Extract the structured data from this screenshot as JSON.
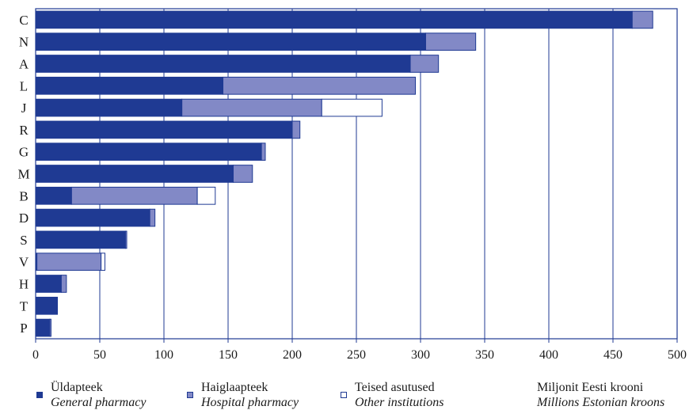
{
  "chart_data": {
    "type": "bar",
    "orientation": "horizontal",
    "stacked": true,
    "categories": [
      "C",
      "N",
      "A",
      "L",
      "J",
      "R",
      "G",
      "M",
      "B",
      "D",
      "S",
      "V",
      "H",
      "T",
      "P"
    ],
    "series": [
      {
        "name": "Üldapteek",
        "name_en": "General pharmacy",
        "color": "#1f3a93",
        "values": [
          465,
          304,
          292,
          146,
          114,
          200,
          176,
          154,
          28,
          89,
          70,
          1,
          20,
          17,
          11
        ]
      },
      {
        "name": "Haiglaapteek",
        "name_en": "Hospital pharmacy",
        "color": "#8289c6",
        "values": [
          16,
          39,
          22,
          150,
          109,
          6,
          3,
          15,
          98,
          4,
          1,
          50,
          4,
          0,
          1
        ]
      },
      {
        "name": "Teised asutused",
        "name_en": "Other institutions",
        "color": "#ffffff",
        "values": [
          0,
          0,
          0,
          0,
          47,
          0,
          0,
          0,
          14,
          0,
          0,
          3,
          0,
          0,
          0
        ]
      }
    ],
    "xlim": [
      0,
      500
    ],
    "xticks": [
      0,
      50,
      100,
      150,
      200,
      250,
      300,
      350,
      400,
      450,
      500
    ],
    "grid": "vertical",
    "unit_label": "Miljonit Eesti krooni",
    "unit_label_en": "Millions Estonian kroons",
    "legend_position": "bottom"
  },
  "colors": {
    "axis": "#1f3a93",
    "grid": "#1f3a93",
    "border": "#1f3a93"
  }
}
